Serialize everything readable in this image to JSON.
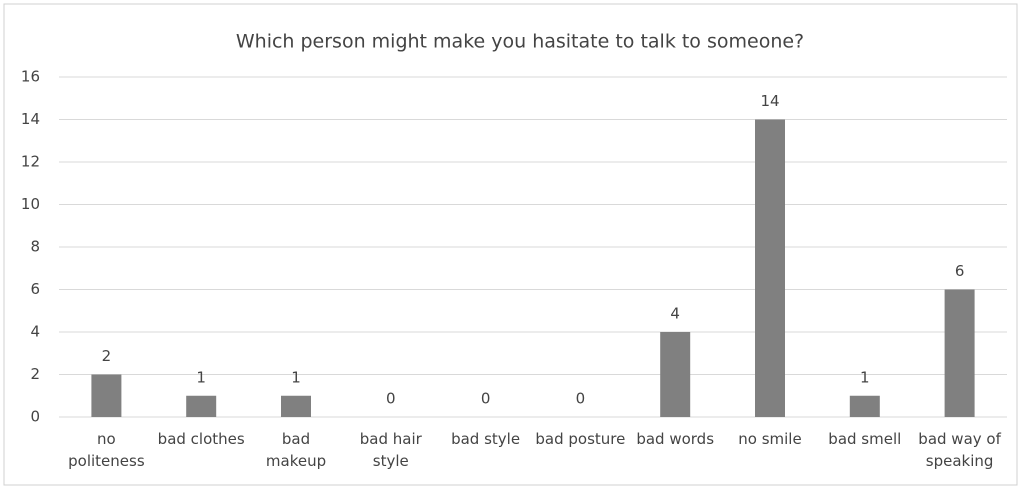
{
  "chart_data": {
    "type": "bar",
    "title": "Which person might make you hasitate to talk to someone?",
    "categories": [
      "no politeness",
      "bad clothes",
      "bad makeup",
      "bad hair style",
      "bad style",
      "bad posture",
      "bad words",
      "no smile",
      "bad smell",
      "bad way of speaking"
    ],
    "values": [
      2,
      1,
      1,
      0,
      0,
      0,
      4,
      14,
      1,
      6
    ],
    "color": "#808080",
    "ylim": [
      0,
      16
    ],
    "yticks": [
      0,
      2,
      4,
      6,
      8,
      10,
      12,
      14,
      16
    ],
    "grid": true
  }
}
